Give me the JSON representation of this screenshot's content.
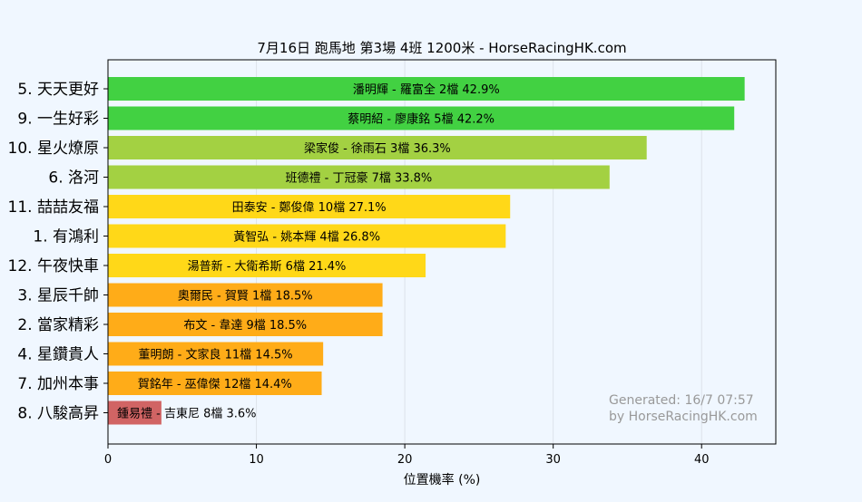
{
  "chart_data": {
    "type": "bar",
    "orientation": "horizontal",
    "title": "7月16日  跑馬地  第3場  4班  1200米 - HorseRacingHK.com",
    "xlabel": "位置機率 (%)",
    "ylabel": "",
    "xlim": [
      0,
      45
    ],
    "xticks": [
      0,
      10,
      20,
      30,
      40
    ],
    "grid": "vertical",
    "categories": [
      "5. 天天更好",
      "9. 一生好彩",
      "10. 星火燎原",
      "6. 洛河",
      "11. 喆喆友福",
      "1. 有鴻利",
      "12. 午夜快車",
      "3. 星辰千帥",
      "2. 當家精彩",
      "4. 星鑽貴人",
      "7. 加州本事",
      "8. 八駿高昇"
    ],
    "values": [
      42.9,
      42.2,
      36.3,
      33.8,
      27.1,
      26.8,
      21.4,
      18.5,
      18.5,
      14.5,
      14.4,
      3.6
    ],
    "bar_labels": [
      "潘明輝 - 羅富全 2檔  42.9%",
      "蔡明紹 - 廖康銘 5檔  42.2%",
      "梁家俊 - 徐雨石 3檔  36.3%",
      "班德禮 - 丁冠豪 7檔  33.8%",
      "田泰安 - 鄭俊偉 10檔  27.1%",
      "黃智弘 - 姚本輝 4檔  26.8%",
      "湯普新 - 大衛希斯 6檔  21.4%",
      "奧爾民 - 賀賢 1檔  18.5%",
      "布文 - 韋達 9檔  18.5%",
      "董明朗 - 文家良 11檔  14.5%",
      "賀銘年 - 巫偉傑 12檔  14.4%",
      "鍾易禮 - 吉東尼 8檔  3.6%"
    ],
    "colors": [
      "#42d142",
      "#42d142",
      "#a3d142",
      "#a3d142",
      "#ffd818",
      "#ffd818",
      "#ffd818",
      "#ffac18",
      "#ffac18",
      "#ffac18",
      "#ffac18",
      "#d16464"
    ],
    "watermark": [
      "Generated: 16/7 07:57",
      "by HorseRacingHK.com"
    ]
  }
}
